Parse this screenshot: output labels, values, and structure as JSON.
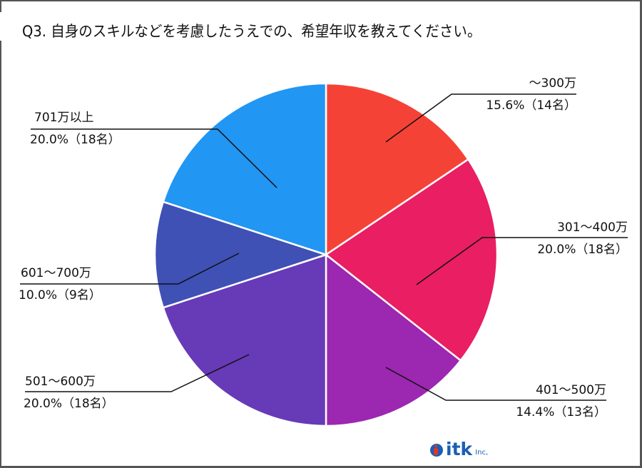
{
  "title": "Q3. 自身のスキルなどを考慮したうえでの、希望年収を教えてください。",
  "chart_data": {
    "type": "pie",
    "title": "Q3. 自身のスキルなどを考慮したうえでの、希望年収を教えてください。",
    "start_angle_deg": 0,
    "direction": "clockwise",
    "center": [
      457,
      357
    ],
    "radius": 240,
    "slice_border_color": "#ffffff",
    "categories": [
      "～300万",
      "301～400万",
      "401～500万",
      "501～600万",
      "601～700万",
      "701万以上"
    ],
    "values": [
      15.6,
      20.0,
      14.4,
      20.0,
      10.0,
      20.0
    ],
    "counts": [
      14,
      18,
      13,
      18,
      9,
      18
    ],
    "colors": [
      "#f44336",
      "#e91e63",
      "#9c27b0",
      "#673ab7",
      "#3f51b5",
      "#2196f3"
    ],
    "labels": [
      {
        "category": "～300万",
        "percent_text": "15.6%（14名）"
      },
      {
        "category": "301～400万",
        "percent_text": "20.0%（18名）"
      },
      {
        "category": "401～500万",
        "percent_text": "14.4%（13名）"
      },
      {
        "category": "501～600万",
        "percent_text": "20.0%（18名）"
      },
      {
        "category": "601～700万",
        "percent_text": "10.0%（9名）"
      },
      {
        "category": "701万以上",
        "percent_text": "20.0%（18名）"
      }
    ],
    "legend": "none (callout labels)"
  },
  "logo": {
    "text": "itk",
    "suffix": "Inc,"
  }
}
